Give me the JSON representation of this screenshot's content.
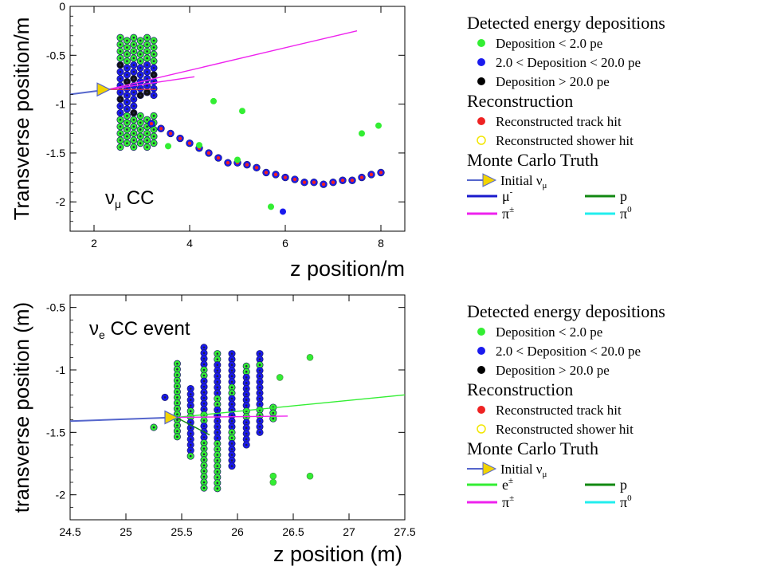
{
  "chart_data": [
    {
      "type": "scatter",
      "title": "",
      "annotation": {
        "main": "ν",
        "sub": "μ",
        "suffix": " CC"
      },
      "xlabel": "z position/m",
      "ylabel": "Transverse position/m",
      "xlim": [
        1.5,
        8.5
      ],
      "ylim": [
        -2.3,
        0
      ],
      "xticks": [
        2,
        4,
        6,
        8
      ],
      "yticks": [
        0,
        -0.5,
        -1,
        -1.5,
        -2
      ],
      "legend": {
        "placement": "right",
        "sections": [
          {
            "title": "Detected energy depositions",
            "entries": [
              {
                "label": "Deposition < 2.0 pe",
                "color": "#33ee33",
                "shape": "dot"
              },
              {
                "label": "2.0 < Deposition < 20.0 pe",
                "color": "#1a1aee",
                "shape": "dot"
              },
              {
                "label": "Deposition > 20.0 pe",
                "color": "#000000",
                "shape": "dot"
              }
            ]
          },
          {
            "title": "Reconstruction",
            "entries": [
              {
                "label": "Reconstructed track hit",
                "color": "#ee2222",
                "shape": "dot"
              },
              {
                "label": "Reconstructed shower hit",
                "color": "#f2e600",
                "shape": "ring"
              }
            ]
          },
          {
            "title": "Monte Carlo Truth",
            "entries": [
              {
                "label": "Initial ν",
                "sub": "μ",
                "color": "#f2d400",
                "shape": "arrow"
              }
            ]
          }
        ],
        "lines": [
          {
            "label": "μ",
            "sup": "-",
            "color": "#1a1acc"
          },
          {
            "label": "p",
            "color": "#118811"
          },
          {
            "label": "π",
            "sup": "±",
            "color": "#ee22ee"
          },
          {
            "label": "π",
            "sup": "0",
            "color": "#22eeee"
          }
        ]
      },
      "truth_lines": [
        {
          "name": "initial",
          "color": "#5566cc",
          "points": [
            [
              1.5,
              -0.9
            ],
            [
              2.3,
              -0.85
            ]
          ]
        },
        {
          "name": "pi",
          "color": "#ee22ee",
          "points": [
            [
              2.3,
              -0.85
            ],
            [
              7.5,
              -0.25
            ]
          ]
        },
        {
          "name": "pi",
          "color": "#ee22ee",
          "points": [
            [
              2.3,
              -0.85
            ],
            [
              4.1,
              -0.72
            ]
          ]
        },
        {
          "name": "p",
          "color": "#cc3355",
          "points": [
            [
              2.3,
              -0.85
            ],
            [
              3.3,
              -0.85
            ]
          ]
        }
      ],
      "vertex": {
        "x": 2.3,
        "y": -0.85,
        "color": "#f2d400"
      },
      "track_hits": [
        [
          3.2,
          -1.2
        ],
        [
          3.4,
          -1.25
        ],
        [
          3.6,
          -1.3
        ],
        [
          3.8,
          -1.35
        ],
        [
          4.0,
          -1.4
        ],
        [
          4.2,
          -1.45
        ],
        [
          4.4,
          -1.5
        ],
        [
          4.6,
          -1.55
        ],
        [
          4.8,
          -1.6
        ],
        [
          5.0,
          -1.6
        ],
        [
          5.2,
          -1.62
        ],
        [
          5.4,
          -1.65
        ],
        [
          5.6,
          -1.7
        ],
        [
          5.8,
          -1.72
        ],
        [
          6.0,
          -1.75
        ],
        [
          6.2,
          -1.77
        ],
        [
          6.4,
          -1.8
        ],
        [
          6.6,
          -1.8
        ],
        [
          6.8,
          -1.82
        ],
        [
          7.0,
          -1.8
        ],
        [
          7.2,
          -1.78
        ],
        [
          7.4,
          -1.78
        ],
        [
          7.6,
          -1.75
        ],
        [
          7.8,
          -1.72
        ],
        [
          8.0,
          -1.7
        ]
      ],
      "scattered_hits": [
        {
          "x": 4.5,
          "y": -0.97,
          "level": "low"
        },
        {
          "x": 5.1,
          "y": -1.07,
          "level": "low"
        },
        {
          "x": 7.6,
          "y": -1.3,
          "level": "low"
        },
        {
          "x": 7.95,
          "y": -1.22,
          "level": "low"
        },
        {
          "x": 4.2,
          "y": -1.42,
          "level": "low"
        },
        {
          "x": 5.0,
          "y": -1.57,
          "level": "low"
        },
        {
          "x": 5.7,
          "y": -2.05,
          "level": "low"
        },
        {
          "x": 5.95,
          "y": -2.1,
          "level": "mid"
        },
        {
          "x": 3.55,
          "y": -1.43,
          "level": "low"
        }
      ],
      "cluster": {
        "x_start": 2.55,
        "x_step": 0.14,
        "columns": 6,
        "y_top": -0.32,
        "y_bottom": -1.45,
        "y_step": 0.07
      }
    },
    {
      "type": "scatter",
      "title": "",
      "annotation": {
        "main": "ν",
        "sub": "e",
        "suffix": " CC event"
      },
      "xlabel": "z position (m)",
      "ylabel": "transverse position (m)",
      "xlim": [
        24.5,
        27.5
      ],
      "ylim": [
        -2.2,
        -0.4
      ],
      "xticks": [
        24.5,
        25,
        25.5,
        26,
        26.5,
        27,
        27.5
      ],
      "yticks": [
        -0.5,
        -1,
        -1.5,
        -2
      ],
      "legend": {
        "placement": "right",
        "sections": [
          {
            "title": "Detected energy depositions",
            "entries": [
              {
                "label": "Deposition < 2.0 pe",
                "color": "#33ee33",
                "shape": "dot"
              },
              {
                "label": "2.0 < Deposition < 20.0 pe",
                "color": "#1a1aee",
                "shape": "dot"
              },
              {
                "label": "Deposition > 20.0 pe",
                "color": "#000000",
                "shape": "dot"
              }
            ]
          },
          {
            "title": "Reconstruction",
            "entries": [
              {
                "label": "Reconstructed track hit",
                "color": "#ee2222",
                "shape": "dot"
              },
              {
                "label": "Reconstructed shower hit",
                "color": "#f2e600",
                "shape": "ring"
              }
            ]
          },
          {
            "title": "Monte Carlo Truth",
            "entries": [
              {
                "label": "Initial ν",
                "sub": "μ",
                "color": "#f2d400",
                "shape": "arrow"
              }
            ]
          }
        ],
        "lines": [
          {
            "label": "e",
            "sup": "±",
            "color": "#33ee33"
          },
          {
            "label": "p",
            "color": "#118811"
          },
          {
            "label": "π",
            "sup": "±",
            "color": "#ee22ee"
          },
          {
            "label": "π",
            "sup": "0",
            "color": "#22eeee"
          }
        ]
      },
      "truth_lines": [
        {
          "name": "initial",
          "color": "#5566cc",
          "points": [
            [
              24.5,
              -1.41
            ],
            [
              25.45,
              -1.38
            ]
          ]
        },
        {
          "name": "e",
          "color": "#33ee33",
          "points": [
            [
              25.45,
              -1.38
            ],
            [
              27.5,
              -1.2
            ]
          ]
        },
        {
          "name": "pi",
          "color": "#ee22ee",
          "points": [
            [
              25.45,
              -1.38
            ],
            [
              26.45,
              -1.37
            ]
          ]
        },
        {
          "name": "p",
          "color": "#118811",
          "points": [
            [
              25.45,
              -1.38
            ],
            [
              25.75,
              -1.52
            ]
          ]
        }
      ],
      "vertex": {
        "x": 25.45,
        "y": -1.38,
        "color": "#f2d400"
      },
      "columns": [
        {
          "x": 25.25,
          "y_top": -1.46,
          "y_bottom": -1.46,
          "kind": "low"
        },
        {
          "x": 25.35,
          "y_top": -1.22,
          "y_bottom": -1.22,
          "kind": "mid"
        },
        {
          "x": 25.46,
          "y_top": -0.95,
          "y_bottom": -1.55,
          "kind": "low"
        },
        {
          "x": 25.58,
          "y_top": -1.15,
          "y_bottom": -1.7,
          "kind": "mixed"
        },
        {
          "x": 25.7,
          "y_top": -0.82,
          "y_bottom": -1.95,
          "kind": "mixed"
        },
        {
          "x": 25.82,
          "y_top": -0.87,
          "y_bottom": -1.95,
          "kind": "mixed"
        },
        {
          "x": 25.95,
          "y_top": -0.87,
          "y_bottom": -1.8,
          "kind": "mixed"
        },
        {
          "x": 26.08,
          "y_top": -0.97,
          "y_bottom": -1.6,
          "kind": "mixed"
        },
        {
          "x": 26.2,
          "y_top": -0.87,
          "y_bottom": -1.5,
          "kind": "mixed"
        },
        {
          "x": 26.32,
          "y_top": -1.3,
          "y_bottom": -1.4,
          "kind": "low"
        }
      ],
      "scattered_hits": [
        {
          "x": 26.38,
          "y": -1.06,
          "level": "low"
        },
        {
          "x": 26.65,
          "y": -0.9,
          "level": "low"
        },
        {
          "x": 26.32,
          "y": -1.85,
          "level": "low"
        },
        {
          "x": 26.32,
          "y": -1.9,
          "level": "low"
        },
        {
          "x": 26.65,
          "y": -1.85,
          "level": "low"
        }
      ]
    }
  ]
}
